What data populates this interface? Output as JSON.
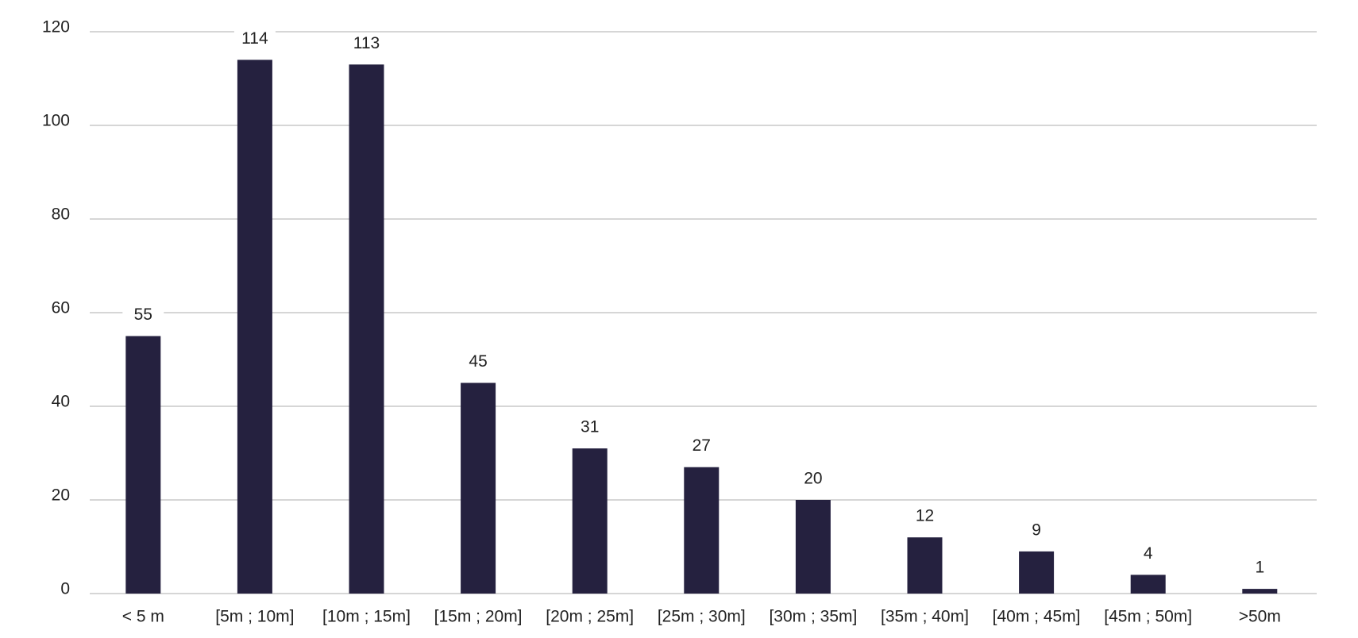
{
  "chart_data": {
    "type": "bar",
    "categories": [
      "< 5 m",
      "[5m ; 10m]",
      "[10m ; 15m]",
      "[15m ; 20m]",
      "[20m ; 25m]",
      "[25m ; 30m]",
      "[30m ; 35m]",
      "[35m ; 40m]",
      "[40m ; 45m]",
      "[45m ; 50m]",
      ">50m"
    ],
    "values": [
      55,
      114,
      113,
      45,
      31,
      27,
      20,
      12,
      9,
      4,
      1
    ],
    "color": "#25213f",
    "ylim": [
      0,
      120
    ],
    "yticks": [
      0,
      20,
      40,
      60,
      80,
      100,
      120
    ],
    "grid": true
  }
}
